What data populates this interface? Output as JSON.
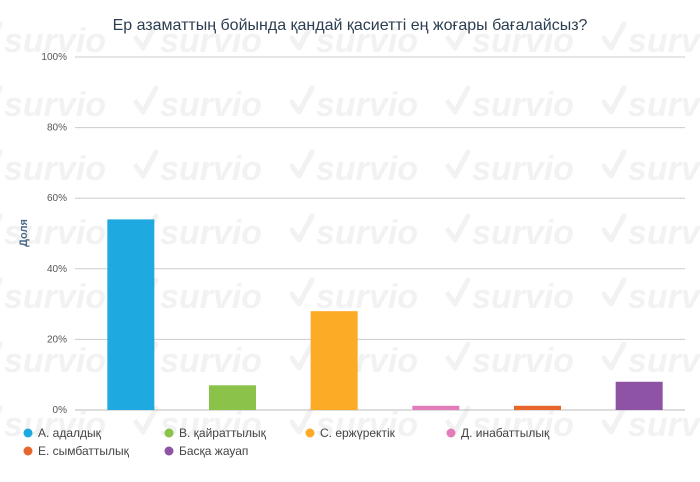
{
  "watermark": "survio",
  "chart_data": {
    "type": "bar",
    "title": "Ер азаматтың бойында қандай қасиетті ең жоғары бағалайсыз?",
    "ylabel": "Доля",
    "ylim": [
      0,
      100
    ],
    "yticks": [
      "0%",
      "20%",
      "40%",
      "60%",
      "80%",
      "100%"
    ],
    "grid": true,
    "legend_position": "bottom",
    "categories": [
      "А. адалдық",
      "В. қайраттылық",
      "С. ержүректік",
      "Д. инабаттылық",
      "Е. сымбаттылық",
      "Басқа жауап"
    ],
    "values": [
      54,
      7,
      28,
      1.2,
      1.2,
      8
    ],
    "colors": [
      "#1fa9e1",
      "#8bc34a",
      "#fbab25",
      "#e27cbb",
      "#e8652c",
      "#8e53a4"
    ]
  }
}
